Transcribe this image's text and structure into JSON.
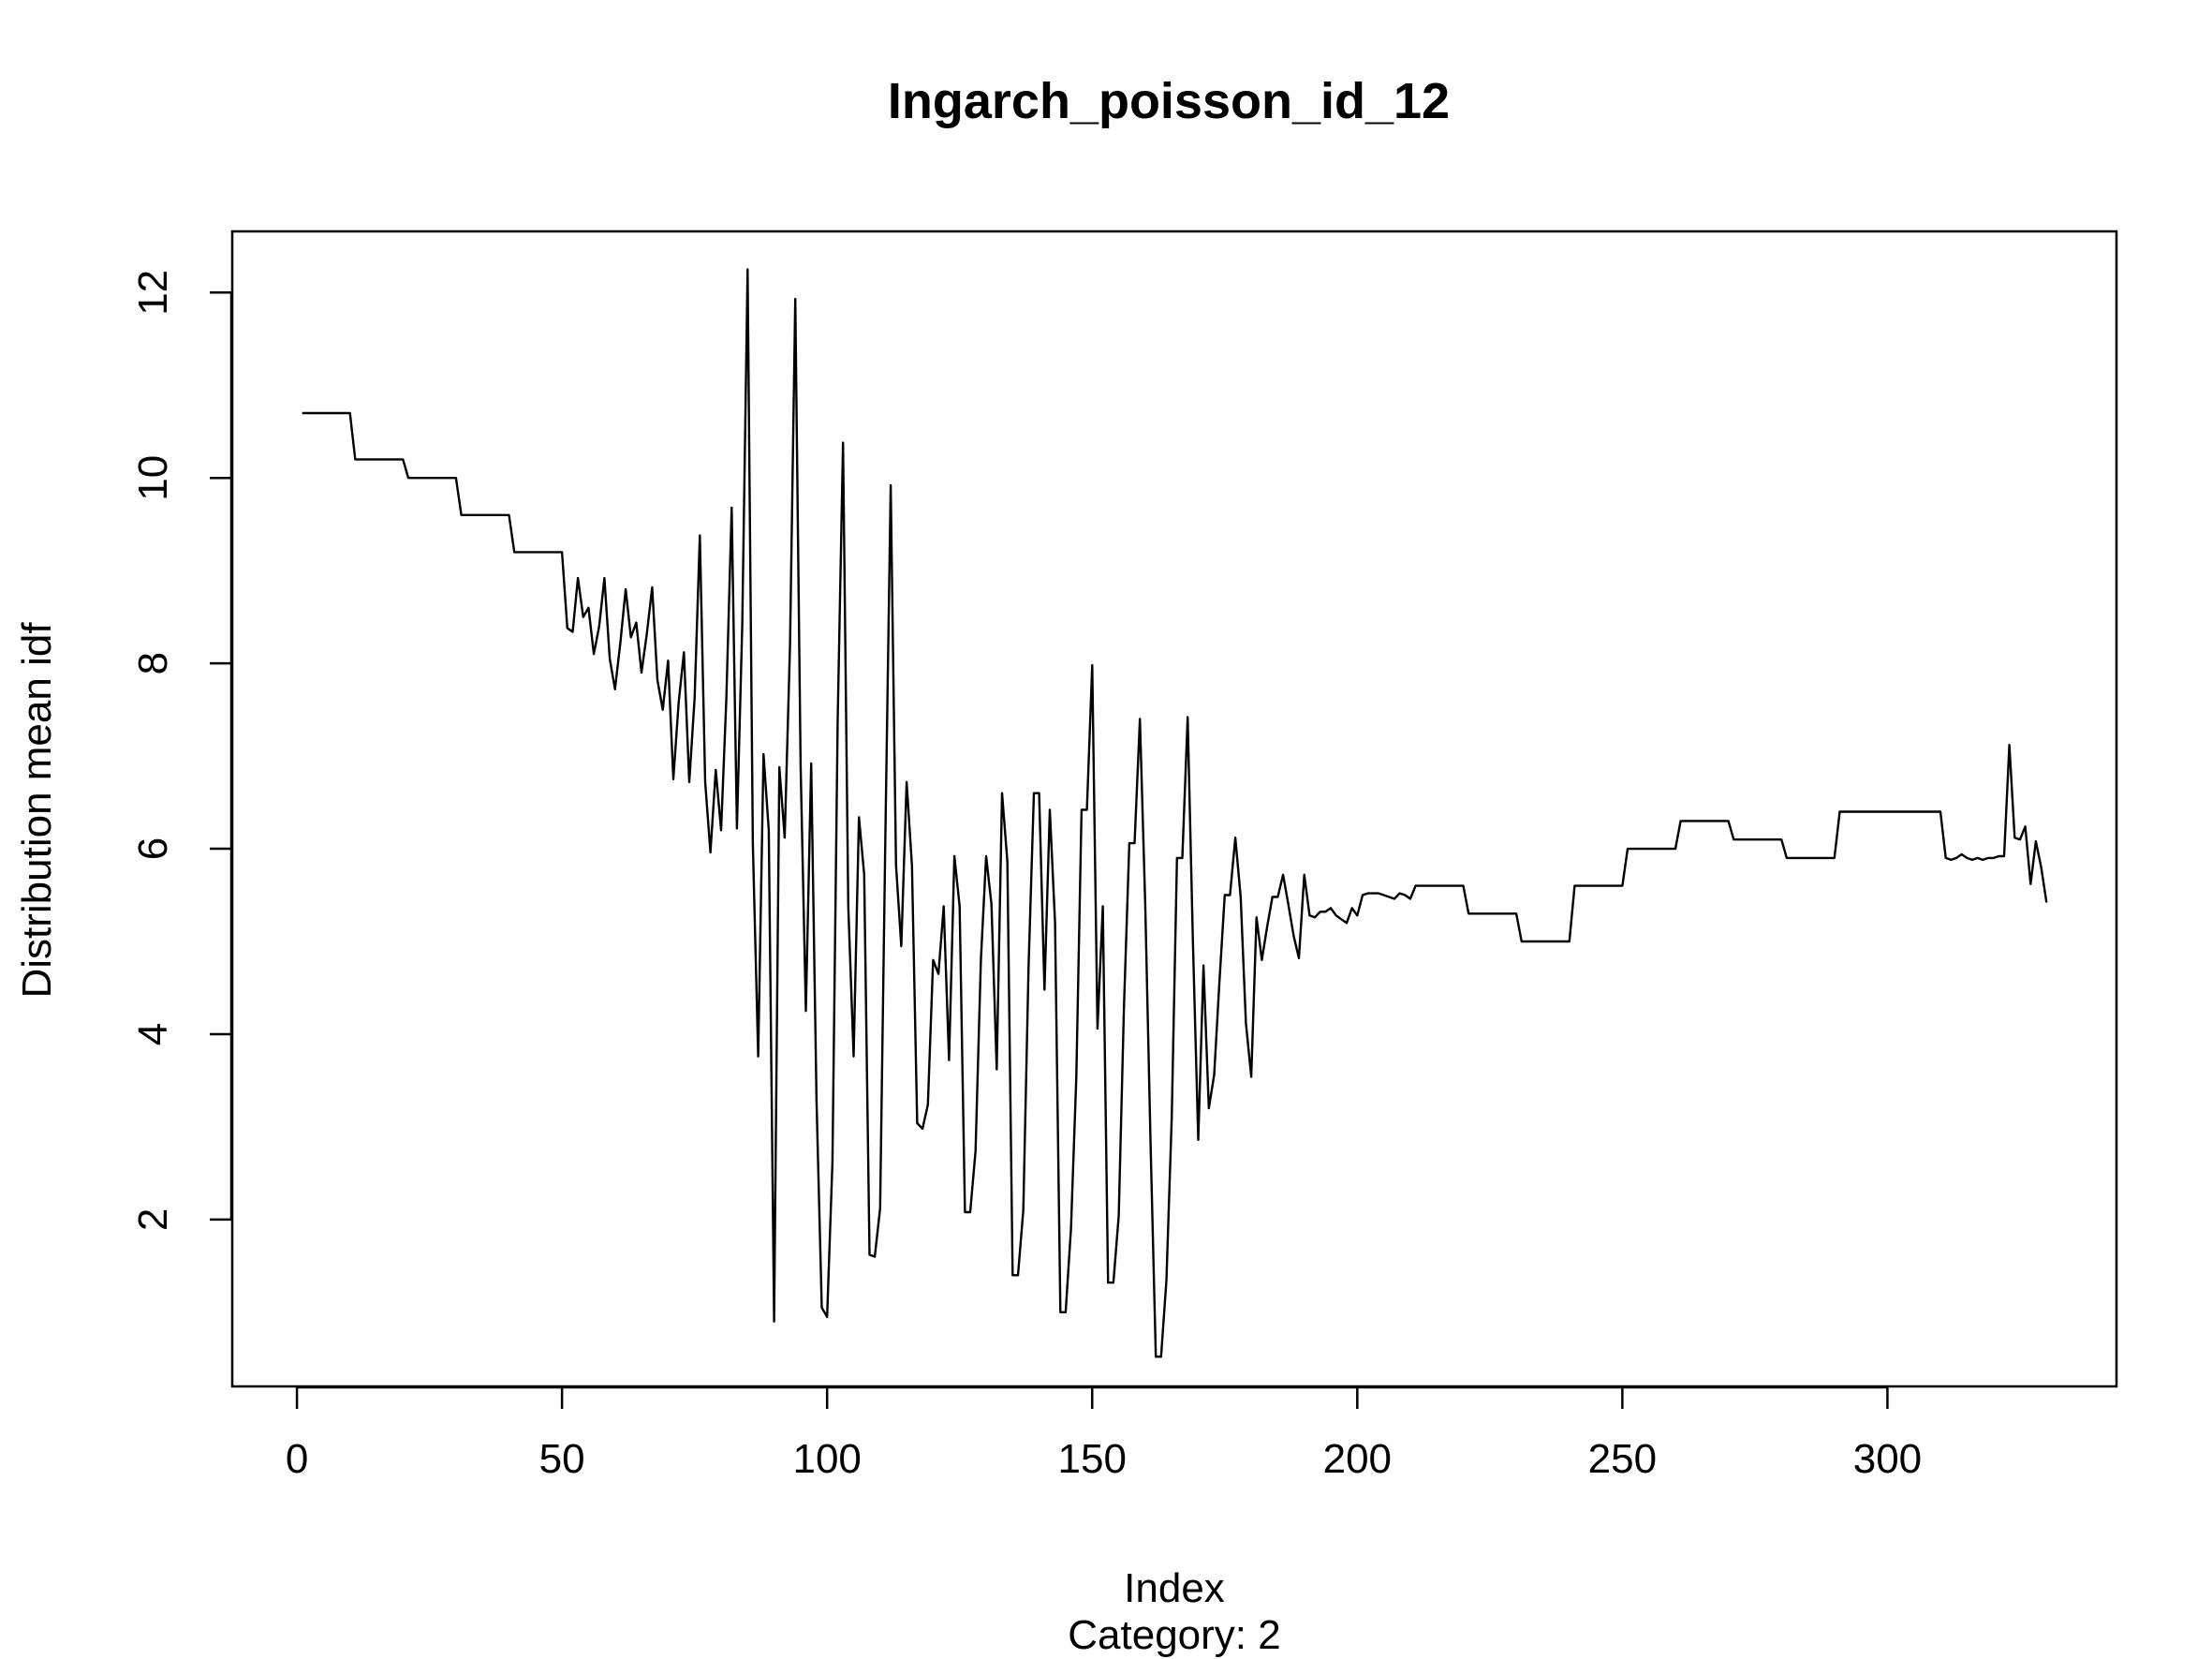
{
  "chart_data": {
    "type": "line",
    "title": "Ingarch_poisson_id_12",
    "xlabel": "Index",
    "sub": "Category: 2",
    "ylabel": "Distribution mean idf",
    "xlim": [
      -12.2,
      343.2
    ],
    "ylim": [
      0.2,
      12.66
    ],
    "x_ticks": [
      0,
      50,
      100,
      150,
      200,
      250,
      300
    ],
    "y_ticks": [
      2,
      4,
      6,
      8,
      10,
      12
    ],
    "x_start": 1,
    "y": [
      10.7,
      10.7,
      10.7,
      10.7,
      10.7,
      10.7,
      10.7,
      10.7,
      10.7,
      10.7,
      10.2,
      10.2,
      10.2,
      10.2,
      10.2,
      10.2,
      10.2,
      10.2,
      10.2,
      10.2,
      10.0,
      10.0,
      10.0,
      10.0,
      10.0,
      10.0,
      10.0,
      10.0,
      10.0,
      10.0,
      9.6,
      9.6,
      9.6,
      9.6,
      9.6,
      9.6,
      9.6,
      9.6,
      9.6,
      9.6,
      9.2,
      9.2,
      9.2,
      9.2,
      9.2,
      9.2,
      9.2,
      9.2,
      9.2,
      9.2,
      8.38,
      8.34,
      8.92,
      8.5,
      8.6,
      8.1,
      8.4,
      8.92,
      8.05,
      7.72,
      8.22,
      8.8,
      8.28,
      8.44,
      7.9,
      8.32,
      8.82,
      7.82,
      7.5,
      8.03,
      6.75,
      7.58,
      8.12,
      6.72,
      7.62,
      9.38,
      6.72,
      5.96,
      6.85,
      6.2,
      7.62,
      9.68,
      6.22,
      8.42,
      12.25,
      6.05,
      3.76,
      7.02,
      6.2,
      0.9,
      6.88,
      6.12,
      8.2,
      11.93,
      6.9,
      4.25,
      6.92,
      3.28,
      1.05,
      0.95,
      2.62,
      7.4,
      10.38,
      5.38,
      3.76,
      6.34,
      5.72,
      1.62,
      1.6,
      2.12,
      6.2,
      9.92,
      5.82,
      4.95,
      6.72,
      5.82,
      3.04,
      2.98,
      3.24,
      4.8,
      4.65,
      5.38,
      3.72,
      5.92,
      5.38,
      2.08,
      2.08,
      2.74,
      4.8,
      5.92,
      5.4,
      3.62,
      6.6,
      5.86,
      1.4,
      1.4,
      2.1,
      4.72,
      6.6,
      6.6,
      4.48,
      6.42,
      5.2,
      1.0,
      1.0,
      1.9,
      3.54,
      6.42,
      6.42,
      7.98,
      4.06,
      5.38,
      1.32,
      1.32,
      2.04,
      4.3,
      6.06,
      6.06,
      7.4,
      5.4,
      2.86,
      0.52,
      0.52,
      1.34,
      3.1,
      5.9,
      5.9,
      7.42,
      5.0,
      2.86,
      4.74,
      3.2,
      3.56,
      4.56,
      5.5,
      5.5,
      6.12,
      5.48,
      4.12,
      3.54,
      5.26,
      4.8,
      5.16,
      5.48,
      5.48,
      5.72,
      5.4,
      5.06,
      4.82,
      5.72,
      5.28,
      5.26,
      5.32,
      5.32,
      5.36,
      5.28,
      5.24,
      5.2,
      5.36,
      5.28,
      5.5,
      5.52,
      5.52,
      5.52,
      5.5,
      5.48,
      5.46,
      5.52,
      5.5,
      5.46,
      5.6,
      5.6,
      5.6,
      5.6,
      5.6,
      5.6,
      5.6,
      5.6,
      5.6,
      5.6,
      5.3,
      5.3,
      5.3,
      5.3,
      5.3,
      5.3,
      5.3,
      5.3,
      5.3,
      5.3,
      5.0,
      5.0,
      5.0,
      5.0,
      5.0,
      5.0,
      5.0,
      5.0,
      5.0,
      5.0,
      5.6,
      5.6,
      5.6,
      5.6,
      5.6,
      5.6,
      5.6,
      5.6,
      5.6,
      5.6,
      6.0,
      6.0,
      6.0,
      6.0,
      6.0,
      6.0,
      6.0,
      6.0,
      6.0,
      6.0,
      6.3,
      6.3,
      6.3,
      6.3,
      6.3,
      6.3,
      6.3,
      6.3,
      6.3,
      6.3,
      6.1,
      6.1,
      6.1,
      6.1,
      6.1,
      6.1,
      6.1,
      6.1,
      6.1,
      6.1,
      5.9,
      5.9,
      5.9,
      5.9,
      5.9,
      5.9,
      5.9,
      5.9,
      5.9,
      5.9,
      6.4,
      6.4,
      6.4,
      6.4,
      6.4,
      6.4,
      6.4,
      6.4,
      6.4,
      6.4,
      6.4,
      6.4,
      6.4,
      6.4,
      6.4,
      6.4,
      6.4,
      6.4,
      6.4,
      6.4,
      5.9,
      5.88,
      5.9,
      5.94,
      5.9,
      5.88,
      5.9,
      5.88,
      5.9,
      5.9,
      5.92,
      5.92,
      7.12,
      6.12,
      6.1,
      6.24,
      5.62,
      6.08,
      5.8,
      5.42
    ]
  }
}
